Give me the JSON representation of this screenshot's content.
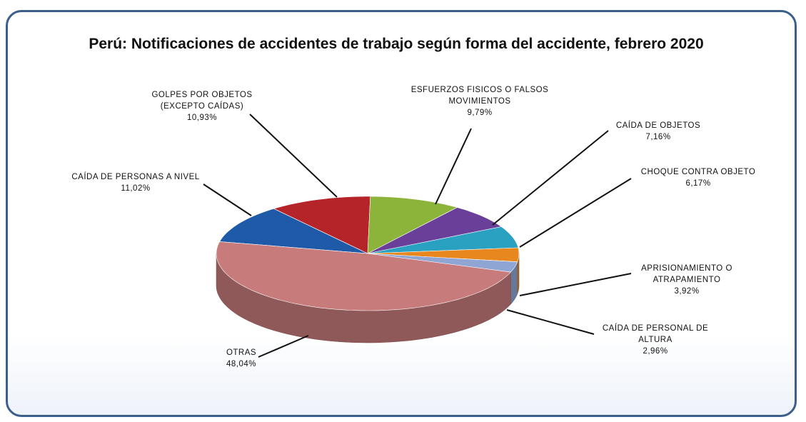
{
  "chart_data": {
    "type": "pie3d",
    "title": "Perú: Notificaciones de accidentes de trabajo según forma del accidente, febrero 2020",
    "categories": [
      "CAÍDA DE PERSONAS A NIVEL",
      "GOLPES POR OBJETOS (EXCEPTO CAÍDAS)",
      "ESFUERZOS FISICOS O FALSOS MOVIMIENTOS",
      "CAÍDA DE OBJETOS",
      "CHOQUE CONTRA OBJETO",
      "APRISIONAMIENTO O ATRAPAMIENTO",
      "CAÍDA DE PERSONAL DE ALTURA",
      "OTRAS"
    ],
    "values": [
      11.02,
      10.93,
      9.79,
      7.16,
      6.17,
      3.92,
      2.96,
      48.04
    ],
    "value_labels": [
      "11,02%",
      "10,93%",
      "9,79%",
      "7,16%",
      "6,17%",
      "3,92%",
      "2,96%",
      "48,04%"
    ],
    "colors": [
      "#1f5aa8",
      "#b42428",
      "#8db43a",
      "#6a3f9a",
      "#2aa1c0",
      "#e8871e",
      "#8fa6d4",
      "#c87b7b"
    ]
  }
}
